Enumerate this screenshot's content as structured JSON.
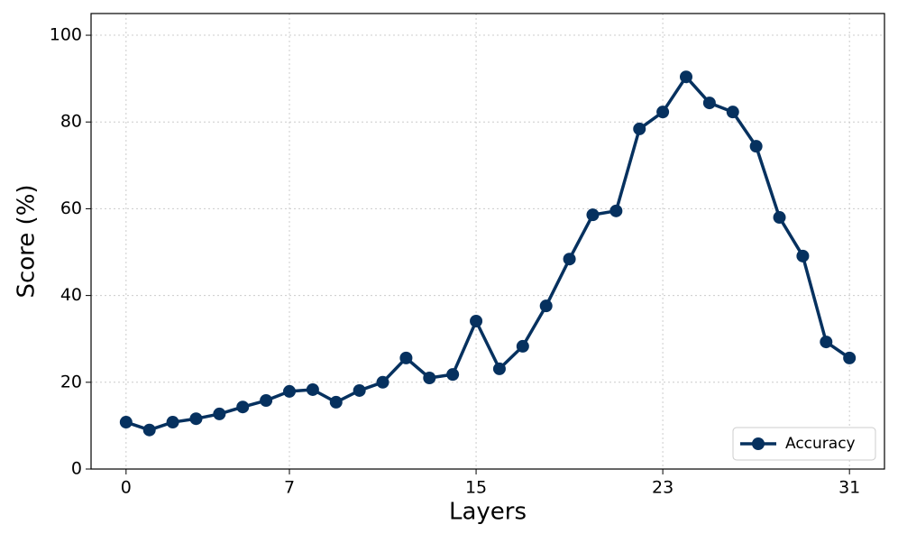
{
  "chart_data": {
    "type": "line",
    "x": [
      0,
      1,
      2,
      3,
      4,
      5,
      6,
      7,
      8,
      9,
      10,
      11,
      12,
      13,
      14,
      15,
      16,
      17,
      18,
      19,
      20,
      21,
      22,
      23,
      24,
      25,
      26,
      27,
      28,
      29,
      30,
      31
    ],
    "series": [
      {
        "name": "Accuracy",
        "color": "#06315f",
        "values": [
          10.8,
          9,
          10.8,
          11.6,
          12.7,
          14.3,
          15.8,
          17.9,
          18.3,
          15.4,
          18.1,
          20,
          25.6,
          21,
          21.8,
          34.1,
          23.1,
          28.3,
          37.6,
          48.4,
          58.6,
          59.5,
          78.4,
          82.3,
          90.4,
          84.4,
          82.3,
          74.4,
          58,
          49.1,
          29.3,
          25.6
        ]
      }
    ],
    "xlabel": "Layers",
    "ylabel": "Score (%)",
    "xlim": [
      -1.5,
      32.5
    ],
    "ylim": [
      0,
      105
    ],
    "xticks": [
      0,
      7,
      15,
      23,
      31
    ],
    "yticks": [
      0,
      20,
      40,
      60,
      80,
      100
    ],
    "grid": true,
    "legend": "lower right"
  }
}
